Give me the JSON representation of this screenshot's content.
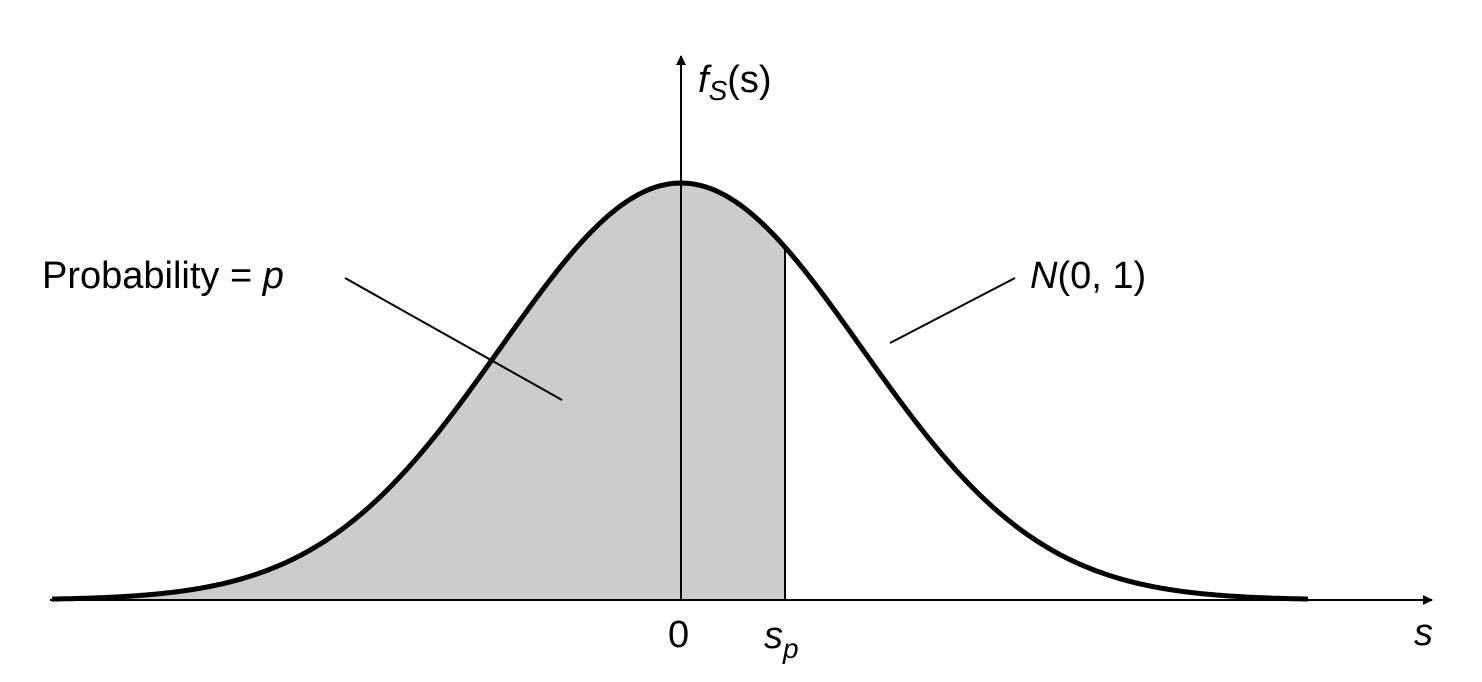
{
  "y_axis_label": {
    "base": "f",
    "subscript": "S",
    "argument": "(s)"
  },
  "x_axis_label": "s",
  "origin_label": "0",
  "quantile_label": {
    "base": "s",
    "subscript": "p"
  },
  "area_annotation": {
    "text": "Probability = ",
    "variable": "p"
  },
  "curve_annotation": {
    "name": "N",
    "parameters": "(0, 1)"
  }
}
